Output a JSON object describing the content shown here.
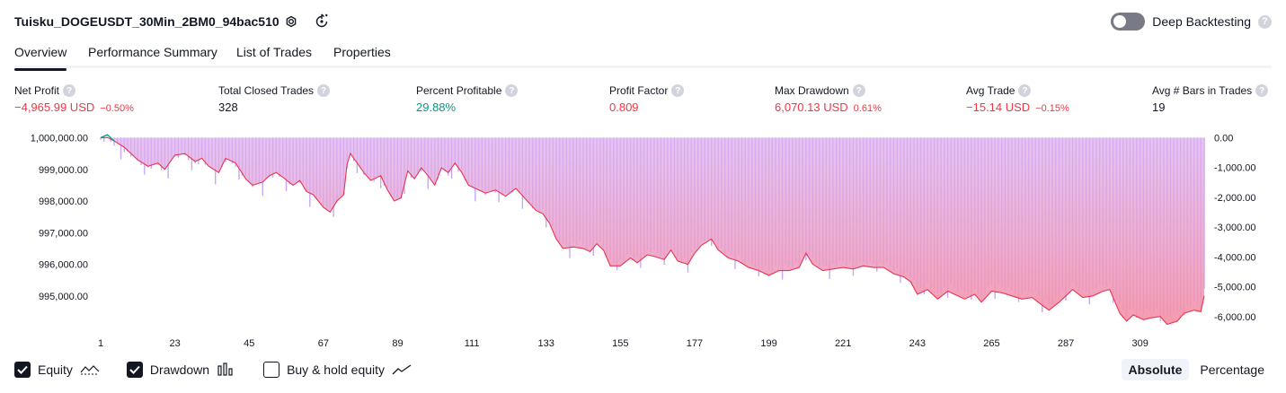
{
  "header": {
    "title": "Tuisku_DOGEUSDT_30Min_2BM0_94bac510",
    "deep_backtesting_label": "Deep Backtesting",
    "help_glyph": "?"
  },
  "tabs": [
    {
      "label": "Overview",
      "active": true
    },
    {
      "label": "Performance Summary",
      "active": false
    },
    {
      "label": "List of Trades",
      "active": false
    },
    {
      "label": "Properties",
      "active": false
    }
  ],
  "metrics": [
    {
      "label": "Net Profit",
      "value": "−4,965.99 USD",
      "sub": "−0.50%",
      "tone": "neg"
    },
    {
      "label": "Total Closed Trades",
      "value": "328",
      "sub": "",
      "tone": "neutral"
    },
    {
      "label": "Percent Profitable",
      "value": "29.88%",
      "sub": "",
      "tone": "pos"
    },
    {
      "label": "Profit Factor",
      "value": "0.809",
      "sub": "",
      "tone": "neg"
    },
    {
      "label": "Max Drawdown",
      "value": "6,070.13 USD",
      "sub": "0.61%",
      "tone": "neg"
    },
    {
      "label": "Avg Trade",
      "value": "−15.14 USD",
      "sub": "−0.15%",
      "tone": "neg"
    },
    {
      "label": "Avg # Bars in Trades",
      "value": "19",
      "sub": "",
      "tone": "neutral"
    }
  ],
  "legend": {
    "equity_label": "Equity",
    "drawdown_label": "Drawdown",
    "buyhold_label": "Buy & hold equity",
    "equity_checked": true,
    "drawdown_checked": true,
    "buyhold_checked": false
  },
  "mode": {
    "absolute_label": "Absolute",
    "percentage_label": "Percentage",
    "active": "absolute"
  },
  "colors": {
    "equity_line": "#e8344e",
    "equity_fill_top": "#d6a4ef",
    "equity_fill_bottom": "#f48fa5",
    "drawdown_bar": "#c9a7f5",
    "equity_start": "#089981",
    "negative": "#f23645",
    "positive": "#089981",
    "axis_text": "#131722"
  },
  "chart_data": {
    "type": "area",
    "left_axis": {
      "ticks": [
        1000000,
        999000,
        998000,
        997000,
        996000,
        995000
      ],
      "tick_labels": [
        "1,000,000.00",
        "999,000.00",
        "998,000.00",
        "997,000.00",
        "996,000.00",
        "995,000.00"
      ],
      "range": [
        994200,
        1000100
      ]
    },
    "right_axis": {
      "ticks": [
        0,
        -1000,
        -2000,
        -3000,
        -4000,
        -5000,
        -6000
      ],
      "tick_labels": [
        "0.00",
        "-1,000.00",
        "-2,000.00",
        "-3,000.00",
        "-4,000.00",
        "-5,000.00",
        "-6,000.00"
      ],
      "range": [
        -6150,
        100
      ]
    },
    "x_axis": {
      "range": [
        1,
        328
      ],
      "ticks": [
        1,
        23,
        45,
        67,
        89,
        111,
        133,
        155,
        177,
        199,
        221,
        243,
        265,
        287,
        309
      ],
      "tick_labels": [
        "1",
        "23",
        "45",
        "67",
        "89",
        "111",
        "133",
        "155",
        "177",
        "199",
        "221",
        "243",
        "265",
        "287",
        "309"
      ]
    },
    "series": [
      {
        "name": "Equity",
        "points": [
          [
            1,
            1000000
          ],
          [
            3,
            1000010
          ],
          [
            5,
            999900
          ],
          [
            8,
            999700
          ],
          [
            12,
            999300
          ],
          [
            15,
            999100
          ],
          [
            18,
            999200
          ],
          [
            20,
            999000
          ],
          [
            23,
            999450
          ],
          [
            26,
            999500
          ],
          [
            29,
            999250
          ],
          [
            31,
            999350
          ],
          [
            33,
            999100
          ],
          [
            36,
            998900
          ],
          [
            38,
            999350
          ],
          [
            41,
            999200
          ],
          [
            44,
            998700
          ],
          [
            46,
            998500
          ],
          [
            49,
            998600
          ],
          [
            51,
            998800
          ],
          [
            53,
            998900
          ],
          [
            55,
            998750
          ],
          [
            58,
            998500
          ],
          [
            60,
            998650
          ],
          [
            62,
            998300
          ],
          [
            64,
            998200
          ],
          [
            67,
            997800
          ],
          [
            69,
            997650
          ],
          [
            71,
            998000
          ],
          [
            73,
            998200
          ],
          [
            74,
            999150
          ],
          [
            75,
            999500
          ],
          [
            77,
            999200
          ],
          [
            79,
            998900
          ],
          [
            81,
            998650
          ],
          [
            84,
            998800
          ],
          [
            86,
            998350
          ],
          [
            88,
            998000
          ],
          [
            90,
            998100
          ],
          [
            92,
            998950
          ],
          [
            94,
            998700
          ],
          [
            96,
            999050
          ],
          [
            98,
            998800
          ],
          [
            100,
            998500
          ],
          [
            102,
            999050
          ],
          [
            104,
            998900
          ],
          [
            106,
            999200
          ],
          [
            108,
            998900
          ],
          [
            110,
            998500
          ],
          [
            112,
            998400
          ],
          [
            115,
            998250
          ],
          [
            118,
            998350
          ],
          [
            121,
            998150
          ],
          [
            124,
            998400
          ],
          [
            127,
            998050
          ],
          [
            130,
            997700
          ],
          [
            132,
            997600
          ],
          [
            134,
            997300
          ],
          [
            136,
            996800
          ],
          [
            138,
            996500
          ],
          [
            141,
            996550
          ],
          [
            144,
            996500
          ],
          [
            146,
            996400
          ],
          [
            148,
            996650
          ],
          [
            150,
            996450
          ],
          [
            152,
            995950
          ],
          [
            155,
            995950
          ],
          [
            158,
            996200
          ],
          [
            160,
            996050
          ],
          [
            163,
            996300
          ],
          [
            165,
            996250
          ],
          [
            168,
            996150
          ],
          [
            170,
            996450
          ],
          [
            172,
            996100
          ],
          [
            175,
            996000
          ],
          [
            177,
            996350
          ],
          [
            179,
            996600
          ],
          [
            182,
            996800
          ],
          [
            184,
            996450
          ],
          [
            187,
            996200
          ],
          [
            190,
            996100
          ],
          [
            193,
            995900
          ],
          [
            196,
            995800
          ],
          [
            199,
            995650
          ],
          [
            202,
            995800
          ],
          [
            205,
            995800
          ],
          [
            208,
            995900
          ],
          [
            210,
            996350
          ],
          [
            212,
            996000
          ],
          [
            215,
            995800
          ],
          [
            218,
            995850
          ],
          [
            221,
            995900
          ],
          [
            224,
            995850
          ],
          [
            227,
            995950
          ],
          [
            230,
            995900
          ],
          [
            233,
            995900
          ],
          [
            236,
            995700
          ],
          [
            239,
            995600
          ],
          [
            241,
            995450
          ],
          [
            243,
            995050
          ],
          [
            246,
            995200
          ],
          [
            249,
            994900
          ],
          [
            252,
            995150
          ],
          [
            255,
            995000
          ],
          [
            257,
            994900
          ],
          [
            260,
            995050
          ],
          [
            262,
            994800
          ],
          [
            265,
            995150
          ],
          [
            268,
            995100
          ],
          [
            271,
            995000
          ],
          [
            274,
            994900
          ],
          [
            277,
            994950
          ],
          [
            280,
            994700
          ],
          [
            282,
            994550
          ],
          [
            285,
            994800
          ],
          [
            287,
            995000
          ],
          [
            289,
            995200
          ],
          [
            292,
            994950
          ],
          [
            295,
            995000
          ],
          [
            298,
            995150
          ],
          [
            300,
            995200
          ],
          [
            303,
            994450
          ],
          [
            305,
            994200
          ],
          [
            307,
            994400
          ],
          [
            310,
            994250
          ],
          [
            312,
            994300
          ],
          [
            315,
            994350
          ],
          [
            317,
            994100
          ],
          [
            320,
            994200
          ],
          [
            322,
            994450
          ],
          [
            325,
            994550
          ],
          [
            327,
            994500
          ],
          [
            328,
            995000
          ]
        ]
      },
      {
        "name": "Drawdown",
        "type": "bar",
        "note_values": "per-trade drawdown relative to peak equity, USD",
        "bar_count": 328
      }
    ]
  }
}
